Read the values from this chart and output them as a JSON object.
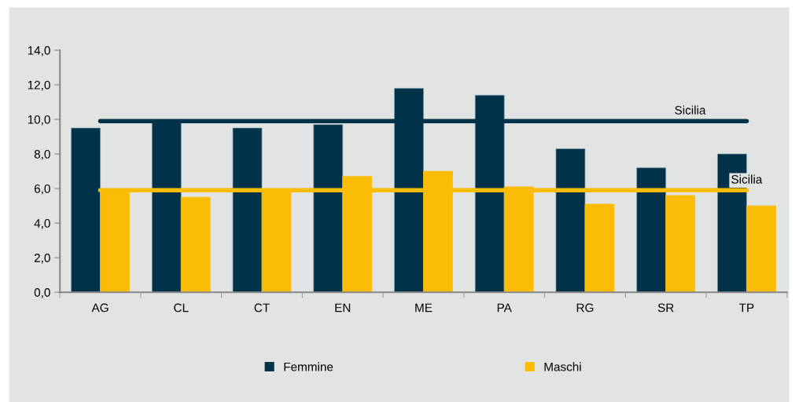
{
  "chart_data": {
    "type": "bar",
    "categories": [
      "AG",
      "CL",
      "CT",
      "EN",
      "ME",
      "PA",
      "RG",
      "SR",
      "TP"
    ],
    "series": [
      {
        "name": "Femmine",
        "color": "#003349",
        "values": [
          9.5,
          9.8,
          9.5,
          9.7,
          11.8,
          11.4,
          8.3,
          7.2,
          8.0
        ]
      },
      {
        "name": "Maschi",
        "color": "#fbbc05",
        "values": [
          5.8,
          5.5,
          5.9,
          6.7,
          7.0,
          6.1,
          5.1,
          5.6,
          5.0
        ]
      }
    ],
    "ylim": [
      0,
      14
    ],
    "yticks": [
      {
        "value": 0,
        "label": "0,0"
      },
      {
        "value": 2,
        "label": "2,0"
      },
      {
        "value": 4,
        "label": "4,0"
      },
      {
        "value": 6,
        "label": "6,0"
      },
      {
        "value": 8,
        "label": "8,0"
      },
      {
        "value": 10,
        "label": "10,0"
      },
      {
        "value": 12,
        "label": "12,0"
      },
      {
        "value": 14,
        "label": "14,0"
      }
    ],
    "ref_lines": [
      {
        "axis": "y",
        "value": 9.9,
        "label": "Sicilia",
        "color": "#003349"
      },
      {
        "axis": "y",
        "value": 5.9,
        "label": "Sicilia",
        "color": "#fbbc05"
      }
    ],
    "legend": "bottom",
    "grid": false
  }
}
